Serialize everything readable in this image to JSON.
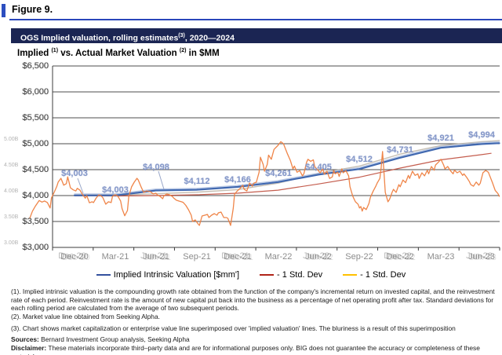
{
  "figure": {
    "label": "Figure 9."
  },
  "banner": {
    "text": "OGS Implied valuation, rolling estimates",
    "sup": "(3)",
    "suffix": ", 2020—2024"
  },
  "chart_title": {
    "t1": "Implied",
    "sup1": "(1)",
    "t2": " vs. Actual Market Valuation",
    "sup2": "(2)",
    "t3": " in $MM"
  },
  "chart_data": {
    "type": "line",
    "title": "Implied vs. Actual Market Valuation in $MM",
    "x_unit": "months since Dec-2020",
    "x_tick_months": [
      0,
      3,
      6,
      9,
      12,
      15,
      18,
      21,
      24,
      27,
      30
    ],
    "x_tick_labels": [
      "Dec-20",
      "Mar-21",
      "Jun-21",
      "Sep-21",
      "Dec-21",
      "Mar-22",
      "Jun-22",
      "Sep-22",
      "Dec-22",
      "Mar-23",
      "Jun-23"
    ],
    "x_tick_blurred": [
      0,
      2,
      4,
      6,
      8,
      10
    ],
    "y_axis": {
      "min": 3000,
      "max": 6500,
      "step": 500,
      "tick_labels": [
        "$3,000",
        "$3,500",
        "$4,000",
        "$4,500",
        "$5,000",
        "$5,500",
        "$6,000",
        "$6,500"
      ]
    },
    "overlay_axis_labels": [
      {
        "label": "5.00B",
        "value": 5000
      },
      {
        "label": "4.50B",
        "value": 4500
      },
      {
        "label": "4.00B",
        "value": 4000
      },
      {
        "label": "3.50B",
        "value": 3500
      },
      {
        "label": "3.00B",
        "value": 3000
      }
    ],
    "data_labels": [
      "$4,003",
      "$4,003",
      "$4,098",
      "$4,112",
      "$4,166",
      "$4,261",
      "$4,405",
      "$4,512",
      "$4,731",
      "$4,921",
      "$4,994"
    ],
    "series": [
      {
        "name": "Implied Intrinsic Valuation [$mm']",
        "style": "smooth",
        "color": "#4068B0",
        "width": 2.2,
        "x": [
          0,
          3,
          6,
          9,
          12,
          15,
          18,
          21,
          24,
          27,
          30,
          31.3
        ],
        "values": [
          4003,
          4003,
          4098,
          4112,
          4166,
          4261,
          4405,
          4512,
          4731,
          4921,
          4994,
          5010
        ]
      },
      {
        "name": "- 1 Std. Dev (lower)",
        "style": "smooth",
        "color": "#BE4B3B",
        "width": 1.2,
        "x": [
          0,
          3,
          6,
          9,
          12,
          15,
          18,
          21,
          24,
          27,
          30,
          30.7
        ],
        "values": [
          3995,
          3993,
          4000,
          4015,
          4045,
          4105,
          4225,
          4355,
          4530,
          4690,
          4790,
          4815
        ]
      },
      {
        "name": "- 1 Std. Dev (upper, faint)",
        "style": "smooth",
        "color": "#BBB3A4",
        "width": 1.4,
        "x": [
          0,
          3,
          6,
          9,
          12,
          15,
          18,
          21,
          24,
          27,
          30,
          31.3
        ],
        "values": [
          4012,
          4012,
          4035,
          4065,
          4115,
          4240,
          4430,
          4570,
          4800,
          4965,
          5040,
          5060
        ]
      },
      {
        "name": "Actual Market Valuation (Seeking Alpha)",
        "style": "jagged",
        "color": "#EE7E3F",
        "width": 1.3,
        "points": [
          [
            -3.3,
            3560
          ],
          [
            -3.1,
            3700
          ],
          [
            -2.9,
            3790
          ],
          [
            -2.6,
            3905
          ],
          [
            -2.4,
            3875
          ],
          [
            -2.2,
            3895
          ],
          [
            -2.0,
            3865
          ],
          [
            -1.8,
            3760
          ],
          [
            -1.7,
            3955
          ],
          [
            -1.5,
            4060
          ],
          [
            -1.3,
            4180
          ],
          [
            -1.2,
            4260
          ],
          [
            -1.0,
            4333
          ],
          [
            -0.8,
            4200
          ],
          [
            -0.6,
            4230
          ],
          [
            -0.5,
            4360
          ],
          [
            -0.3,
            4150
          ],
          [
            -0.1,
            4110
          ],
          [
            0.1,
            4090
          ],
          [
            0.2,
            4140
          ],
          [
            0.4,
            4105
          ],
          [
            0.6,
            4015
          ],
          [
            0.8,
            3950
          ],
          [
            0.9,
            4000
          ],
          [
            1.1,
            3860
          ],
          [
            1.3,
            3880
          ],
          [
            1.4,
            3865
          ],
          [
            1.6,
            3955
          ],
          [
            1.8,
            4015
          ],
          [
            2.0,
            3985
          ],
          [
            2.1,
            3955
          ],
          [
            2.3,
            3833
          ],
          [
            2.5,
            3880
          ],
          [
            2.7,
            3865
          ],
          [
            2.8,
            3985
          ],
          [
            3.0,
            4015
          ],
          [
            3.2,
            3985
          ],
          [
            3.4,
            3894
          ],
          [
            3.5,
            3750
          ],
          [
            3.7,
            3610
          ],
          [
            3.9,
            3712
          ],
          [
            4.0,
            3985
          ],
          [
            4.2,
            4166
          ],
          [
            4.4,
            4257
          ],
          [
            4.6,
            4333
          ],
          [
            4.7,
            4300
          ],
          [
            4.9,
            4170
          ],
          [
            5.1,
            4060
          ],
          [
            5.3,
            4090
          ],
          [
            5.6,
            4075
          ],
          [
            5.8,
            4030
          ],
          [
            6.0,
            4045
          ],
          [
            6.1,
            4015
          ],
          [
            6.3,
            3985
          ],
          [
            6.5,
            3940
          ],
          [
            6.6,
            4000
          ],
          [
            6.8,
            4030
          ],
          [
            7.0,
            4015
          ],
          [
            7.2,
            3985
          ],
          [
            7.3,
            3955
          ],
          [
            7.5,
            3910
          ],
          [
            7.7,
            3894
          ],
          [
            7.9,
            3879
          ],
          [
            8.0,
            3870
          ],
          [
            8.2,
            3810
          ],
          [
            8.4,
            3727
          ],
          [
            8.6,
            3621
          ],
          [
            8.7,
            3500
          ],
          [
            8.9,
            3530
          ],
          [
            9.1,
            3455
          ],
          [
            9.2,
            3424
          ],
          [
            9.4,
            3606
          ],
          [
            9.6,
            3621
          ],
          [
            9.8,
            3636
          ],
          [
            9.9,
            3576
          ],
          [
            10.1,
            3621
          ],
          [
            10.3,
            3652
          ],
          [
            10.5,
            3621
          ],
          [
            10.6,
            3667
          ],
          [
            10.8,
            3682
          ],
          [
            11.0,
            3576
          ],
          [
            11.2,
            3576
          ],
          [
            11.3,
            3561
          ],
          [
            11.5,
            3424
          ],
          [
            11.7,
            3758
          ],
          [
            11.8,
            4030
          ],
          [
            12.0,
            4090
          ],
          [
            12.2,
            4140
          ],
          [
            12.4,
            4200
          ],
          [
            12.5,
            4120
          ],
          [
            12.7,
            4090
          ],
          [
            12.9,
            4242
          ],
          [
            13.1,
            4180
          ],
          [
            13.2,
            4240
          ],
          [
            13.4,
            4257
          ],
          [
            13.6,
            4450
          ],
          [
            13.7,
            4740
          ],
          [
            13.9,
            4600
          ],
          [
            14.0,
            4470
          ],
          [
            14.2,
            4600
          ],
          [
            14.3,
            4780
          ],
          [
            14.5,
            4700
          ],
          [
            14.7,
            4890
          ],
          [
            15.0,
            4970
          ],
          [
            15.2,
            5040
          ],
          [
            15.4,
            5000
          ],
          [
            15.5,
            4930
          ],
          [
            15.7,
            4800
          ],
          [
            15.9,
            4680
          ],
          [
            16.1,
            4515
          ],
          [
            16.2,
            4570
          ],
          [
            16.4,
            4450
          ],
          [
            16.6,
            4480
          ],
          [
            16.8,
            4380
          ],
          [
            16.9,
            4420
          ],
          [
            17.1,
            4640
          ],
          [
            17.2,
            4700
          ],
          [
            17.4,
            4660
          ],
          [
            17.6,
            4690
          ],
          [
            17.7,
            4560
          ],
          [
            17.9,
            4500
          ],
          [
            18.1,
            4440
          ],
          [
            18.3,
            4515
          ],
          [
            18.4,
            4410
          ],
          [
            18.6,
            4470
          ],
          [
            18.8,
            4330
          ],
          [
            19.0,
            4360
          ],
          [
            19.1,
            4485
          ],
          [
            19.2,
            4420
          ],
          [
            19.4,
            4450
          ],
          [
            19.5,
            4370
          ],
          [
            19.7,
            4515
          ],
          [
            19.8,
            4440
          ],
          [
            20.0,
            4480
          ],
          [
            20.2,
            4380
          ],
          [
            20.3,
            4170
          ],
          [
            20.5,
            3990
          ],
          [
            20.7,
            3880
          ],
          [
            20.9,
            3830
          ],
          [
            21.0,
            3760
          ],
          [
            21.1,
            3790
          ],
          [
            21.2,
            3700
          ],
          [
            21.3,
            3770
          ],
          [
            21.5,
            3730
          ],
          [
            21.6,
            3790
          ],
          [
            21.7,
            3850
          ],
          [
            21.8,
            3960
          ],
          [
            22.0,
            4080
          ],
          [
            22.2,
            4180
          ],
          [
            22.3,
            4240
          ],
          [
            22.5,
            4330
          ],
          [
            22.6,
            4550
          ],
          [
            22.7,
            4850
          ],
          [
            22.8,
            4480
          ],
          [
            22.9,
            4060
          ],
          [
            23.1,
            3880
          ],
          [
            23.2,
            3920
          ],
          [
            23.3,
            3985
          ],
          [
            23.4,
            4060
          ],
          [
            23.5,
            4120
          ],
          [
            23.7,
            4060
          ],
          [
            23.9,
            4210
          ],
          [
            24.0,
            4170
          ],
          [
            24.2,
            4300
          ],
          [
            24.4,
            4250
          ],
          [
            24.6,
            4390
          ],
          [
            24.7,
            4330
          ],
          [
            24.9,
            4470
          ],
          [
            25.1,
            4390
          ],
          [
            25.3,
            4420
          ],
          [
            25.4,
            4330
          ],
          [
            25.6,
            4440
          ],
          [
            25.8,
            4380
          ],
          [
            26.0,
            4490
          ],
          [
            26.1,
            4420
          ],
          [
            26.3,
            4560
          ],
          [
            26.5,
            4490
          ],
          [
            26.6,
            4590
          ],
          [
            26.8,
            4640
          ],
          [
            27.0,
            4700
          ],
          [
            27.2,
            4590
          ],
          [
            27.3,
            4515
          ],
          [
            27.5,
            4560
          ],
          [
            27.7,
            4480
          ],
          [
            27.9,
            4420
          ],
          [
            28.0,
            4490
          ],
          [
            28.2,
            4440
          ],
          [
            28.4,
            4470
          ],
          [
            28.6,
            4390
          ],
          [
            28.7,
            4420
          ],
          [
            28.9,
            4350
          ],
          [
            29.1,
            4270
          ],
          [
            29.2,
            4210
          ],
          [
            29.4,
            4180
          ],
          [
            29.6,
            4260
          ],
          [
            29.8,
            4200
          ],
          [
            29.9,
            4240
          ],
          [
            30.1,
            4440
          ],
          [
            30.3,
            4485
          ],
          [
            30.5,
            4450
          ],
          [
            30.6,
            4380
          ],
          [
            30.8,
            4250
          ],
          [
            31.0,
            4100
          ],
          [
            31.2,
            4040
          ],
          [
            31.3,
            3985
          ]
        ]
      }
    ]
  },
  "legend": {
    "items": [
      {
        "label": "Implied Intrinsic Valuation [$mm']",
        "color": "#33519E"
      },
      {
        "label": "- 1 Std. Dev",
        "color": "#B02418"
      },
      {
        "label": "- 1 Std. Dev",
        "color": "#FFC000"
      }
    ]
  },
  "footnotes": {
    "fn1": "(1). Implied intrinsic valuation is the compounding growth rate obtained from the function of the company's incremental return on invested capital, and the reinvestment rate of each period. Reinvestment rate is the amount of new capital put back into the business as a percentage of net operating profit after tax. Standard deviations for each rolling period are calculated from the average of two subsequent periods.",
    "fn2": "(2). Market value line obtained from Seeking Alpha.",
    "fn3": "(3). Chart shows market capitalization or enterprise value line superimposed over 'implied valuation' lines. The bluriness is a result of this superimposition",
    "sources_label": "Sources:",
    "sources": " Bernard Investment Group analysis, Seeking Alpha",
    "disclaimer_label": "Disclaimer:",
    "disclaimer": " These materials incorporate third–party data and are for informational purposes only. BIG does not guarantee the accuracy or completeness of these materials"
  }
}
